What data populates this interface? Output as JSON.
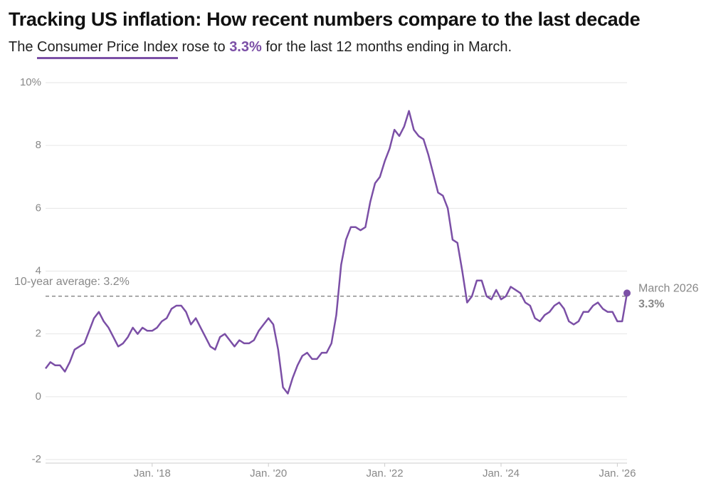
{
  "chart_data": {
    "type": "line",
    "title": "Tracking US inflation: How recent numbers compare to the last decade",
    "subtitle": {
      "before": "The",
      "link": "Consumer Price Index",
      "middle": "rose to",
      "highlight": "3.3%",
      "after": "for the last 12 months ending in March."
    },
    "categories": [
      null,
      null,
      null,
      null,
      null,
      null,
      null,
      null,
      null,
      null,
      null,
      null,
      null,
      null,
      null,
      null,
      null,
      null,
      null,
      null,
      null,
      null,
      "Jan. '18",
      null,
      null,
      null,
      null,
      null,
      null,
      null,
      null,
      null,
      null,
      null,
      null,
      null,
      null,
      null,
      null,
      null,
      null,
      null,
      null,
      null,
      null,
      null,
      "Jan. '20",
      null,
      null,
      null,
      null,
      null,
      null,
      null,
      null,
      null,
      null,
      null,
      null,
      null,
      null,
      null,
      null,
      null,
      null,
      null,
      null,
      null,
      null,
      null,
      "Jan. '22",
      null,
      null,
      null,
      null,
      null,
      null,
      null,
      null,
      null,
      null,
      null,
      null,
      null,
      null,
      null,
      null,
      null,
      null,
      null,
      null,
      null,
      null,
      null,
      "Jan. '24",
      null,
      null,
      null,
      null,
      null,
      null,
      null,
      null,
      null,
      null,
      null,
      null,
      null,
      null,
      null,
      null,
      null,
      null,
      null,
      null,
      null,
      null,
      null,
      "Jan. '26",
      null,
      null
    ],
    "series": [
      {
        "name": "Consumer Price Index",
        "color": "#7b4fa6",
        "values": [
          0.9,
          1.1,
          1.0,
          1.0,
          0.8,
          1.1,
          1.5,
          1.6,
          1.7,
          2.1,
          2.5,
          2.7,
          2.4,
          2.2,
          1.9,
          1.6,
          1.7,
          1.9,
          2.2,
          2.0,
          2.2,
          2.1,
          2.1,
          2.2,
          2.4,
          2.5,
          2.8,
          2.9,
          2.9,
          2.7,
          2.3,
          2.5,
          2.2,
          1.9,
          1.6,
          1.5,
          1.9,
          2.0,
          1.8,
          1.6,
          1.8,
          1.7,
          1.7,
          1.8,
          2.1,
          2.3,
          2.5,
          2.3,
          1.5,
          0.3,
          0.1,
          0.6,
          1.0,
          1.3,
          1.4,
          1.2,
          1.2,
          1.4,
          1.4,
          1.7,
          2.6,
          4.2,
          5.0,
          5.4,
          5.4,
          5.3,
          5.4,
          6.2,
          6.8,
          7.0,
          7.5,
          7.9,
          8.5,
          8.3,
          8.6,
          9.1,
          8.5,
          8.3,
          8.2,
          7.7,
          7.1,
          6.5,
          6.4,
          6.0,
          5.0,
          4.9,
          4.0,
          3.0,
          3.2,
          3.7,
          3.7,
          3.2,
          3.1,
          3.4,
          3.1,
          3.2,
          3.5,
          3.4,
          3.3,
          3.0,
          2.9,
          2.5,
          2.4,
          2.6,
          2.7,
          2.9,
          3.0,
          2.8,
          2.4,
          2.3,
          2.4,
          2.7,
          2.7,
          2.9,
          3.0,
          2.8,
          2.7,
          2.7,
          2.4,
          2.4,
          3.3
        ]
      }
    ],
    "end_label": "March 2026",
    "end_value_label": "3.3%",
    "average": {
      "value": 3.2,
      "label": "10-year average: 3.2%"
    },
    "ylim": [
      -2,
      10
    ],
    "yticks": [
      -2,
      0,
      2,
      4,
      6,
      8,
      {
        "value": 10,
        "label": "10%"
      }
    ],
    "grid": true
  }
}
